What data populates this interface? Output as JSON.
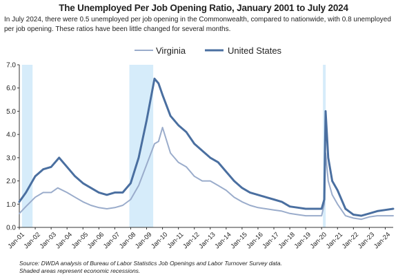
{
  "header": {
    "title": "The Unemployed Per Job Opening Ratio, January 2001 to July  2024",
    "subtitle": "In July 2024, there were 0.5 unemployed per job opening in the Commonwealth, compared to nationwide, with 0.8 unemployed per job opening. These ratios have been little changed for several months."
  },
  "footer": {
    "source_line1": "Source: DWDA analysis of Bureau of Labor Statistics Job Openings and Labor Turnover Survey data.",
    "source_line2": "Shaded areas represent economic recessions."
  },
  "chart_data": {
    "type": "line",
    "title": "The Unemployed Per Job Opening Ratio, January 2001 to July  2024",
    "x_start": "2001-01",
    "x_end": "2024-07",
    "x_tick_labels": [
      "Jan-01",
      "Jan-02",
      "Jan-03",
      "Jan-04",
      "Jan-05",
      "Jan-06",
      "Jan-07",
      "Jan-08",
      "Jan-09",
      "Jan-10",
      "Jan-11",
      "Jan-12",
      "Jan-13",
      "Jan-14",
      "Jan-15",
      "Jan-16",
      "Jan-17",
      "Jan-18",
      "Jan-19",
      "Jan-20",
      "Jan-21",
      "Jan-22",
      "Jan-23",
      "Jan-24"
    ],
    "y_ticks": [
      "0.0",
      "1.0",
      "2.0",
      "3.0",
      "4.0",
      "5.0",
      "6.0",
      "7.0"
    ],
    "ylim": [
      0,
      7
    ],
    "legend_position": "top",
    "recessions": [
      {
        "start": "2001-03",
        "end": "2001-11"
      },
      {
        "start": "2007-12",
        "end": "2009-06"
      },
      {
        "start": "2020-02",
        "end": "2020-04"
      }
    ],
    "series": [
      {
        "name": "Virginia",
        "color": "#9aaccb",
        "points": [
          [
            "2001-01",
            0.6
          ],
          [
            "2001-06",
            0.9
          ],
          [
            "2002-01",
            1.3
          ],
          [
            "2002-07",
            1.5
          ],
          [
            "2003-01",
            1.5
          ],
          [
            "2003-06",
            1.7
          ],
          [
            "2004-01",
            1.5
          ],
          [
            "2004-07",
            1.3
          ],
          [
            "2005-01",
            1.1
          ],
          [
            "2005-07",
            0.95
          ],
          [
            "2006-01",
            0.85
          ],
          [
            "2006-07",
            0.8
          ],
          [
            "2007-01",
            0.85
          ],
          [
            "2007-07",
            0.95
          ],
          [
            "2008-01",
            1.2
          ],
          [
            "2008-07",
            1.8
          ],
          [
            "2009-01",
            2.7
          ],
          [
            "2009-07",
            3.6
          ],
          [
            "2009-10",
            3.7
          ],
          [
            "2010-01",
            4.3
          ],
          [
            "2010-07",
            3.2
          ],
          [
            "2011-01",
            2.8
          ],
          [
            "2011-07",
            2.6
          ],
          [
            "2012-01",
            2.2
          ],
          [
            "2012-07",
            2.0
          ],
          [
            "2013-01",
            2.0
          ],
          [
            "2013-07",
            1.8
          ],
          [
            "2014-01",
            1.6
          ],
          [
            "2014-07",
            1.3
          ],
          [
            "2015-01",
            1.1
          ],
          [
            "2015-07",
            0.95
          ],
          [
            "2016-01",
            0.85
          ],
          [
            "2016-07",
            0.8
          ],
          [
            "2017-01",
            0.75
          ],
          [
            "2017-07",
            0.7
          ],
          [
            "2018-01",
            0.6
          ],
          [
            "2018-07",
            0.55
          ],
          [
            "2019-01",
            0.5
          ],
          [
            "2019-07",
            0.5
          ],
          [
            "2020-01",
            0.5
          ],
          [
            "2020-03",
            1.0
          ],
          [
            "2020-04",
            3.2
          ],
          [
            "2020-06",
            2.0
          ],
          [
            "2020-09",
            1.4
          ],
          [
            "2021-01",
            1.0
          ],
          [
            "2021-07",
            0.5
          ],
          [
            "2022-01",
            0.4
          ],
          [
            "2022-07",
            0.35
          ],
          [
            "2023-01",
            0.45
          ],
          [
            "2023-07",
            0.5
          ],
          [
            "2024-01",
            0.5
          ],
          [
            "2024-07",
            0.5
          ]
        ]
      },
      {
        "name": "United States",
        "color": "#4a6fa0",
        "points": [
          [
            "2001-01",
            1.1
          ],
          [
            "2001-06",
            1.5
          ],
          [
            "2002-01",
            2.2
          ],
          [
            "2002-07",
            2.5
          ],
          [
            "2003-01",
            2.6
          ],
          [
            "2003-07",
            3.0
          ],
          [
            "2004-01",
            2.6
          ],
          [
            "2004-07",
            2.2
          ],
          [
            "2005-01",
            1.9
          ],
          [
            "2005-07",
            1.7
          ],
          [
            "2006-01",
            1.5
          ],
          [
            "2006-07",
            1.4
          ],
          [
            "2007-01",
            1.5
          ],
          [
            "2007-07",
            1.5
          ],
          [
            "2008-01",
            1.9
          ],
          [
            "2008-07",
            3.0
          ],
          [
            "2009-01",
            4.6
          ],
          [
            "2009-07",
            6.4
          ],
          [
            "2009-10",
            6.2
          ],
          [
            "2010-01",
            5.7
          ],
          [
            "2010-07",
            4.8
          ],
          [
            "2011-01",
            4.4
          ],
          [
            "2011-07",
            4.1
          ],
          [
            "2012-01",
            3.6
          ],
          [
            "2012-07",
            3.3
          ],
          [
            "2013-01",
            3.0
          ],
          [
            "2013-07",
            2.8
          ],
          [
            "2014-01",
            2.4
          ],
          [
            "2014-07",
            2.0
          ],
          [
            "2015-01",
            1.7
          ],
          [
            "2015-07",
            1.5
          ],
          [
            "2016-01",
            1.4
          ],
          [
            "2016-07",
            1.3
          ],
          [
            "2017-01",
            1.2
          ],
          [
            "2017-07",
            1.1
          ],
          [
            "2018-01",
            0.9
          ],
          [
            "2018-07",
            0.85
          ],
          [
            "2019-01",
            0.8
          ],
          [
            "2019-07",
            0.8
          ],
          [
            "2020-01",
            0.8
          ],
          [
            "2020-03",
            1.2
          ],
          [
            "2020-04",
            5.0
          ],
          [
            "2020-06",
            3.0
          ],
          [
            "2020-09",
            2.0
          ],
          [
            "2021-01",
            1.6
          ],
          [
            "2021-07",
            0.8
          ],
          [
            "2022-01",
            0.55
          ],
          [
            "2022-07",
            0.5
          ],
          [
            "2023-01",
            0.6
          ],
          [
            "2023-07",
            0.7
          ],
          [
            "2024-01",
            0.75
          ],
          [
            "2024-07",
            0.8
          ]
        ]
      }
    ]
  }
}
